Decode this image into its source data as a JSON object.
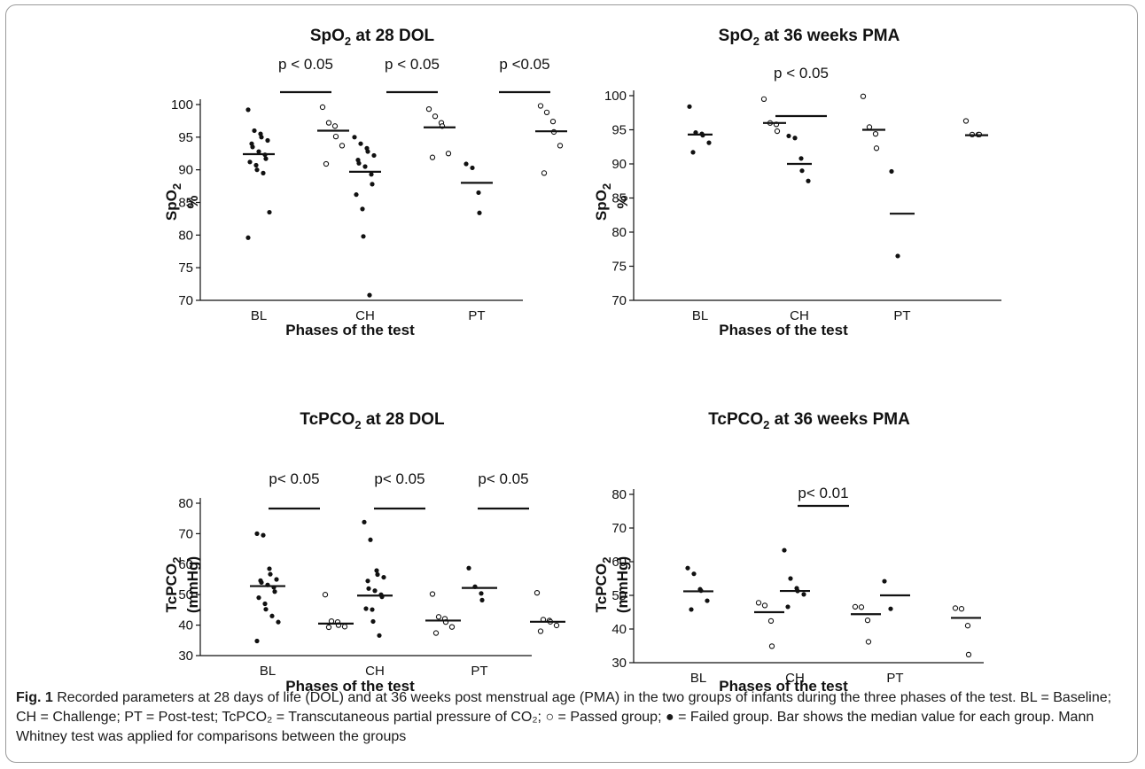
{
  "chart_data": [
    {
      "type": "scatter",
      "title": "SpO2 at 28 DOL",
      "title_main": "SpO",
      "title_sub": "2",
      "title_rest": " at 28 DOL",
      "ylabel_main": "SpO",
      "ylabel_sub": "2",
      "ylabel_line2": "%",
      "xlabel": "Phases of the test",
      "categories": [
        "BL",
        "CH",
        "PT"
      ],
      "ylim": [
        70,
        100
      ],
      "yticks": [
        70,
        75,
        80,
        85,
        90,
        95,
        100
      ],
      "annotations": [
        "p < 0.05",
        "p < 0.05",
        "p <0.05"
      ],
      "series": [
        {
          "name": "Failed",
          "marker": "filled",
          "groups": [
            [
              99.2,
              96,
              95.5,
              95,
              94.5,
              94,
              93.5,
              92.8,
              92.3,
              91.7,
              91.2,
              90.7,
              90,
              89.5,
              83.5,
              79.6
            ],
            [
              95,
              94,
              93.3,
              92.8,
              92.2,
              91.5,
              91,
              90.5,
              89.3,
              87.8,
              86.2,
              84,
              79.8,
              70.8
            ],
            [
              90.9,
              90.3,
              86.5,
              83.4
            ]
          ],
          "medians": [
            92.4,
            89.7,
            88
          ]
        },
        {
          "name": "Passed",
          "marker": "open",
          "groups": [
            [
              99.6,
              97.2,
              96.7,
              95.1,
              93.7,
              90.9
            ],
            [
              99.3,
              98.2,
              97.2,
              96.7,
              92.5,
              91.9
            ],
            [
              99.8,
              98.8,
              97.4,
              95.8,
              93.7,
              89.5
            ]
          ],
          "medians": [
            96,
            96.5,
            95.9
          ]
        }
      ]
    },
    {
      "type": "scatter",
      "title": "SpO2 at 36 weeks PMA",
      "title_main": "SpO",
      "title_sub": "2",
      "title_rest": " at 36 weeks PMA",
      "ylabel_main": "SpO",
      "ylabel_sub": "2",
      "ylabel_line2": "%",
      "xlabel": "Phases of the test",
      "categories": [
        "BL",
        "CH",
        "PT"
      ],
      "ylim": [
        70,
        100
      ],
      "yticks": [
        70,
        75,
        80,
        85,
        90,
        95,
        100
      ],
      "annotations": [
        "",
        "p < 0.05",
        ""
      ],
      "series": [
        {
          "name": "Failed",
          "marker": "filled",
          "groups": [
            [
              98.4,
              94.6,
              94.4,
              94.2,
              93.1,
              91.7
            ],
            [
              94.1,
              93.8,
              90.8,
              89,
              87.5
            ],
            [
              88.9,
              76.5
            ]
          ],
          "medians": [
            94.3,
            90,
            82.7
          ]
        },
        {
          "name": "Passed",
          "marker": "open",
          "groups": [
            [
              99.5,
              96,
              95.8,
              94.8
            ],
            [
              99.9,
              95.4,
              94.4,
              92.3
            ],
            [
              96.3,
              94.3,
              94.3,
              94.3
            ]
          ],
          "medians": [
            96,
            95,
            94.2
          ]
        }
      ]
    },
    {
      "type": "scatter",
      "title": "TcPCO2 at 28 DOL",
      "title_main": "TcPCO",
      "title_sub": "2",
      "title_rest": " at 28 DOL",
      "ylabel_main": "TcPCO",
      "ylabel_sub": "2",
      "ylabel_line2": "(mmHg)",
      "xlabel": "Phases of the test",
      "categories": [
        "BL",
        "CH",
        "PT"
      ],
      "ylim": [
        30,
        80
      ],
      "yticks": [
        30,
        40,
        50,
        60,
        70,
        80
      ],
      "annotations": [
        "p< 0.05",
        "p< 0.05",
        "p< 0.05"
      ],
      "series": [
        {
          "name": "Failed",
          "marker": "filled",
          "groups": [
            [
              70,
              69.5,
              58.5,
              56.7,
              55,
              54.6,
              54,
              53.2,
              52.4,
              51,
              49,
              47,
              45.2,
              43,
              41,
              34.8
            ],
            [
              73.8,
              68,
              57.9,
              56.6,
              55.7,
              54.5,
              52,
              51.3,
              50,
              49.3,
              45.4,
              45.1,
              41.2,
              36.6
            ],
            [
              58.7,
              52.6,
              50.4,
              48.2
            ]
          ],
          "medians": [
            52.8,
            49.7,
            52.2
          ]
        },
        {
          "name": "Passed",
          "marker": "open",
          "groups": [
            [
              50,
              41.3,
              41,
              40,
              39.5,
              39.3
            ],
            [
              50.2,
              42.7,
              42.1,
              41,
              39.4,
              37.4
            ],
            [
              50.6,
              41.8,
              41.5,
              41.1,
              39.9,
              38
            ]
          ],
          "medians": [
            40.5,
            41.5,
            41.1
          ]
        }
      ]
    },
    {
      "type": "scatter",
      "title": "TcPCO2 at 36 weeks PMA",
      "title_main": "TcPCO",
      "title_sub": "2",
      "title_rest": " at 36 weeks PMA",
      "ylabel_main": "TcPCO",
      "ylabel_sub": "2",
      "ylabel_line2": "(mmHg)",
      "xlabel": "Phases of the test",
      "categories": [
        "BL",
        "CH",
        "PT"
      ],
      "ylim": [
        30,
        80
      ],
      "yticks": [
        30,
        40,
        50,
        60,
        70,
        80
      ],
      "annotations": [
        "",
        "p< 0.01",
        ""
      ],
      "series": [
        {
          "name": "Failed",
          "marker": "filled",
          "groups": [
            [
              58.1,
              56.4,
              51.8,
              51.4,
              48.4,
              45.8
            ],
            [
              63.4,
              55,
              52.1,
              51.3,
              50.3,
              46.6
            ],
            [
              54.2,
              46
            ]
          ],
          "medians": [
            51.2,
            51.3,
            50
          ]
        },
        {
          "name": "Passed",
          "marker": "open",
          "groups": [
            [
              47.8,
              47,
              42.4,
              34.9
            ],
            [
              46.6,
              46.5,
              42.6,
              36.2
            ],
            [
              46.2,
              46,
              41,
              32.4
            ]
          ],
          "medians": [
            45,
            44.4,
            43.3
          ]
        }
      ]
    }
  ],
  "caption": {
    "fig_label": "Fig. 1",
    "text": " Recorded parameters at 28 days of life (DOL) and at 36 weeks post menstrual age (PMA) in the two groups of infants during the three phases of the test. BL = Baseline; CH = Challenge; PT = Post-test; TcPCO₂ = Transcutaneous partial pressure of CO₂; ○ = Passed group; ● = Failed group. Bar shows the median value for each group. Mann Whitney test was applied for comparisons between the groups"
  }
}
